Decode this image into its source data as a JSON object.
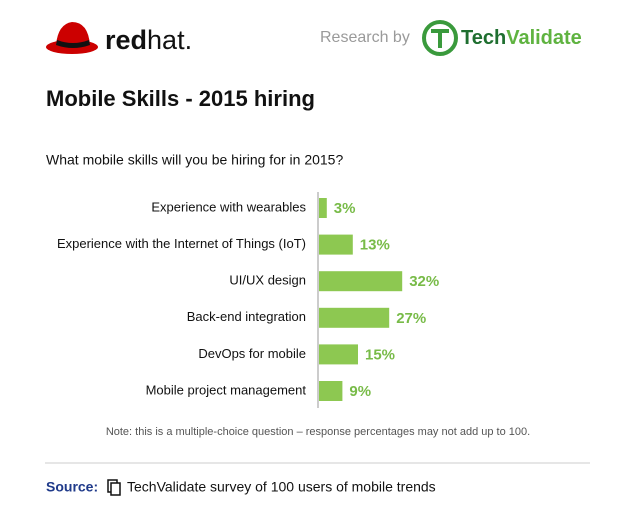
{
  "header": {
    "logo_left": {
      "bold": "red",
      "regular": "hat."
    },
    "research_by": "Research by",
    "logo_right": {
      "dark": "Tech",
      "light": "Validate"
    }
  },
  "chart_data": {
    "type": "bar",
    "orientation": "horizontal",
    "title": "Mobile Skills - 2015 hiring",
    "subtitle": "What mobile skills will you be hiring for in 2015?",
    "categories": [
      "Experience with wearables",
      "Experience with the Internet of Things (IoT)",
      "UI/UX design",
      "Back-end integration",
      "DevOps for mobile",
      "Mobile project management"
    ],
    "values": [
      3,
      13,
      32,
      27,
      15,
      9
    ],
    "value_labels": [
      "3%",
      "13%",
      "32%",
      "27%",
      "15%",
      "9%"
    ],
    "color": "#8dc851",
    "label_color": "#78bb48",
    "note": "Note: this is a multiple-choice question – response percentages may not add up to 100."
  },
  "footer": {
    "source_label": "Source:",
    "source_text": "TechValidate survey of 100 users of mobile trends"
  }
}
